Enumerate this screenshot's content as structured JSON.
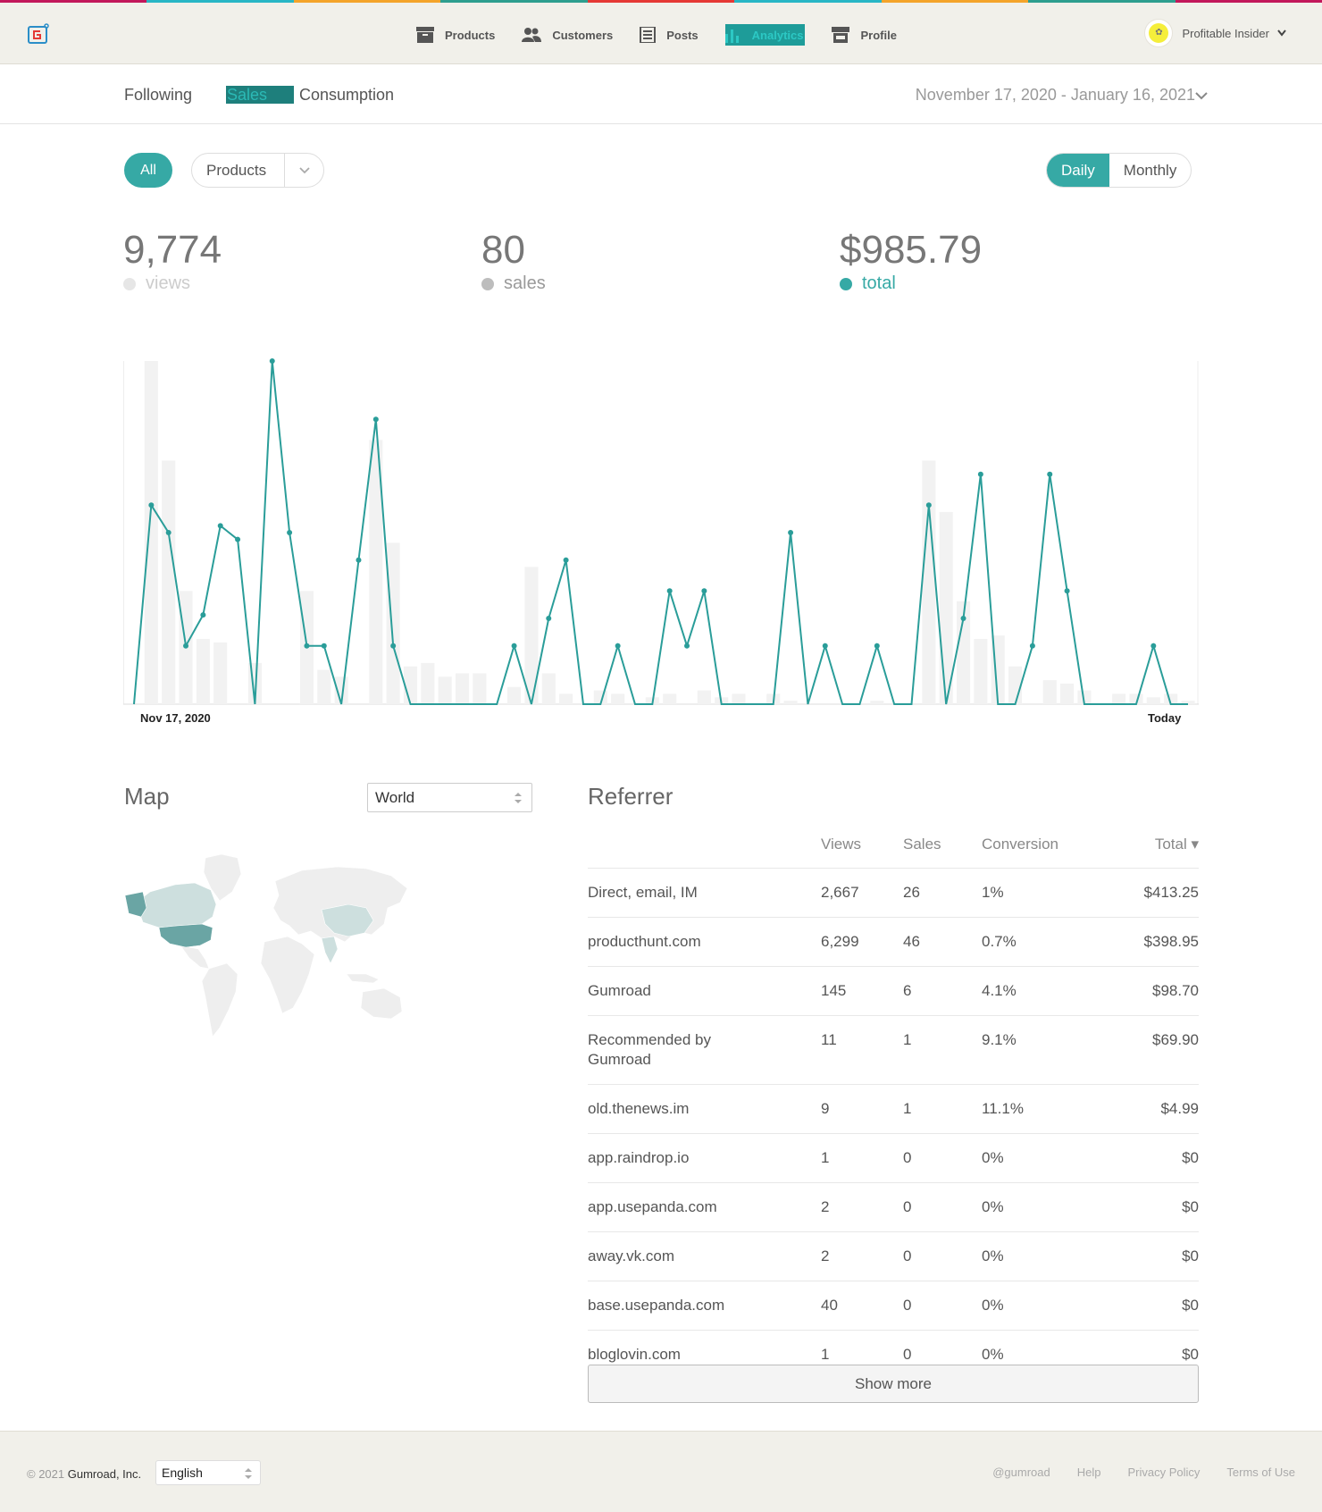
{
  "header": {
    "rainbow_colors": [
      "#c2185b",
      "#29b6c5",
      "#f4a42a",
      "#2e9e8f",
      "#e53935",
      "#29b6c5",
      "#f4a42a",
      "#2e9e8f",
      "#c2185b"
    ],
    "nav": [
      {
        "label": "Products",
        "icon": "archive-box-icon",
        "active": false
      },
      {
        "label": "Customers",
        "icon": "people-icon",
        "active": false
      },
      {
        "label": "Posts",
        "icon": "newspaper-icon",
        "active": false
      },
      {
        "label": "Analytics",
        "icon": "bar-chart-icon",
        "active": true
      },
      {
        "label": "Profile",
        "icon": "storefront-icon",
        "active": false
      }
    ],
    "user": {
      "name": "Profitable Insider",
      "icon": "chevron-down-icon"
    }
  },
  "subnav": {
    "tabs": [
      "Following",
      "Sales",
      "Consumption"
    ],
    "active_tab": "Sales",
    "date_range": "November 17, 2020 - January 16, 2021"
  },
  "filters": {
    "all_label": "All",
    "products_label": "Products",
    "daily_label": "Daily",
    "monthly_label": "Monthly",
    "active_period": "Daily"
  },
  "stats": {
    "views": {
      "value": "9,774",
      "label": "views",
      "color": "#e6e6e6"
    },
    "sales": {
      "value": "80",
      "label": "sales",
      "color": "#bdbdbd"
    },
    "total": {
      "value": "$985.79",
      "label": "total",
      "color": "#36a9a5"
    }
  },
  "chart_data": {
    "type": "line",
    "x_start_label": "Nov 17, 2020",
    "x_end_label": "Today",
    "line_color": "#2a9d99",
    "bar_color": "#f2f2f2",
    "grid": false,
    "total_series": [
      0,
      58,
      50,
      17,
      26,
      52,
      48,
      0,
      100,
      50,
      17,
      17,
      0,
      42,
      83,
      17,
      0,
      0,
      0,
      0,
      0,
      0,
      17,
      0,
      25,
      42,
      0,
      0,
      17,
      0,
      0,
      33,
      17,
      33,
      0,
      0,
      0,
      0,
      50,
      0,
      17,
      0,
      0,
      17,
      0,
      0,
      58,
      0,
      25,
      67,
      0,
      0,
      17,
      67,
      33,
      0,
      0,
      0,
      0,
      17,
      0,
      0
    ],
    "views_series": [
      0,
      100,
      71,
      33,
      19,
      18,
      0,
      12,
      0,
      0,
      33,
      10,
      8,
      0,
      77,
      47,
      11,
      12,
      8,
      9,
      9,
      0,
      5,
      40,
      9,
      3,
      0,
      4,
      3,
      0,
      2,
      3,
      0,
      4,
      2,
      3,
      0,
      3,
      1,
      0,
      0,
      0,
      0,
      1,
      0,
      0,
      71,
      56,
      30,
      19,
      20,
      11,
      0,
      7,
      6,
      4,
      0,
      3,
      3,
      2,
      3,
      1
    ]
  },
  "map": {
    "title": "Map",
    "region": "World",
    "highlight_color": "#6aa5a4",
    "base_color": "#eeeeee",
    "mid_color": "#cddfde"
  },
  "referrer": {
    "title": "Referrer",
    "columns": {
      "source": "",
      "views": "Views",
      "sales": "Sales",
      "conversion": "Conversion",
      "total": "Total ▾"
    },
    "rows": [
      {
        "source": "Direct, email, IM",
        "views": "2,667",
        "sales": "26",
        "conversion": "1%",
        "total": "$413.25"
      },
      {
        "source": "producthunt.com",
        "views": "6,299",
        "sales": "46",
        "conversion": "0.7%",
        "total": "$398.95"
      },
      {
        "source": "Gumroad",
        "views": "145",
        "sales": "6",
        "conversion": "4.1%",
        "total": "$98.70"
      },
      {
        "source": "Recommended by Gumroad",
        "views": "11",
        "sales": "1",
        "conversion": "9.1%",
        "total": "$69.90"
      },
      {
        "source": "old.thenews.im",
        "views": "9",
        "sales": "1",
        "conversion": "11.1%",
        "total": "$4.99"
      },
      {
        "source": "app.raindrop.io",
        "views": "1",
        "sales": "0",
        "conversion": "0%",
        "total": "$0"
      },
      {
        "source": "app.usepanda.com",
        "views": "2",
        "sales": "0",
        "conversion": "0%",
        "total": "$0"
      },
      {
        "source": "away.vk.com",
        "views": "2",
        "sales": "0",
        "conversion": "0%",
        "total": "$0"
      },
      {
        "source": "base.usepanda.com",
        "views": "40",
        "sales": "0",
        "conversion": "0%",
        "total": "$0"
      },
      {
        "source": "bloglovin.com",
        "views": "1",
        "sales": "0",
        "conversion": "0%",
        "total": "$0"
      }
    ],
    "show_more": "Show more"
  },
  "footer": {
    "copyright_prefix": "© 2021",
    "company": "Gumroad, Inc.",
    "language": "English",
    "links": [
      "@gumroad",
      "Help",
      "Privacy Policy",
      "Terms of Use"
    ]
  }
}
